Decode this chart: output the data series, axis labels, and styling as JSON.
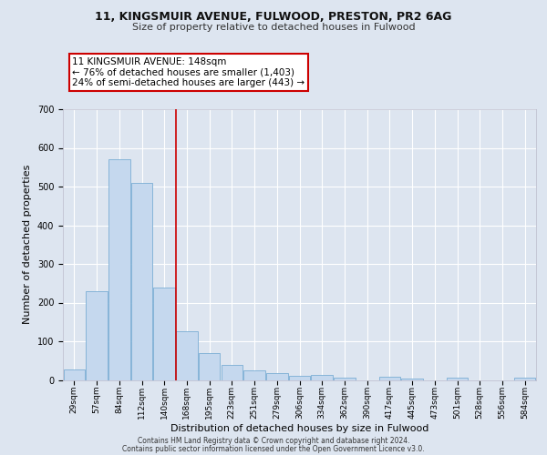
{
  "title_line1": "11, KINGSMUIR AVENUE, FULWOOD, PRESTON, PR2 6AG",
  "title_line2": "Size of property relative to detached houses in Fulwood",
  "xlabel": "Distribution of detached houses by size in Fulwood",
  "ylabel": "Number of detached properties",
  "footer_line1": "Contains HM Land Registry data © Crown copyright and database right 2024.",
  "footer_line2": "Contains public sector information licensed under the Open Government Licence v3.0.",
  "categories": [
    "29sqm",
    "57sqm",
    "84sqm",
    "112sqm",
    "140sqm",
    "168sqm",
    "195sqm",
    "223sqm",
    "251sqm",
    "279sqm",
    "306sqm",
    "334sqm",
    "362sqm",
    "390sqm",
    "417sqm",
    "445sqm",
    "473sqm",
    "501sqm",
    "528sqm",
    "556sqm",
    "584sqm"
  ],
  "values": [
    28,
    230,
    570,
    510,
    240,
    125,
    70,
    40,
    25,
    18,
    10,
    12,
    5,
    0,
    8,
    3,
    0,
    5,
    0,
    0,
    5
  ],
  "bar_color": "#c5d8ee",
  "bar_edge_color": "#7aadd4",
  "vline_color": "#cc0000",
  "annotation_text": "11 KINGSMUIR AVENUE: 148sqm\n← 76% of detached houses are smaller (1,403)\n24% of semi-detached houses are larger (443) →",
  "annotation_box_color": "white",
  "annotation_border_color": "#cc0000",
  "ylim": [
    0,
    700
  ],
  "yticks": [
    0,
    100,
    200,
    300,
    400,
    500,
    600,
    700
  ],
  "background_color": "#dde5f0",
  "plot_bg_color": "#dde5f0",
  "grid_color": "white",
  "title_fontsize": 9,
  "subtitle_fontsize": 8,
  "tick_fontsize": 6.5,
  "ylabel_fontsize": 8,
  "xlabel_fontsize": 8,
  "footer_fontsize": 5.5,
  "annot_fontsize": 7.5
}
